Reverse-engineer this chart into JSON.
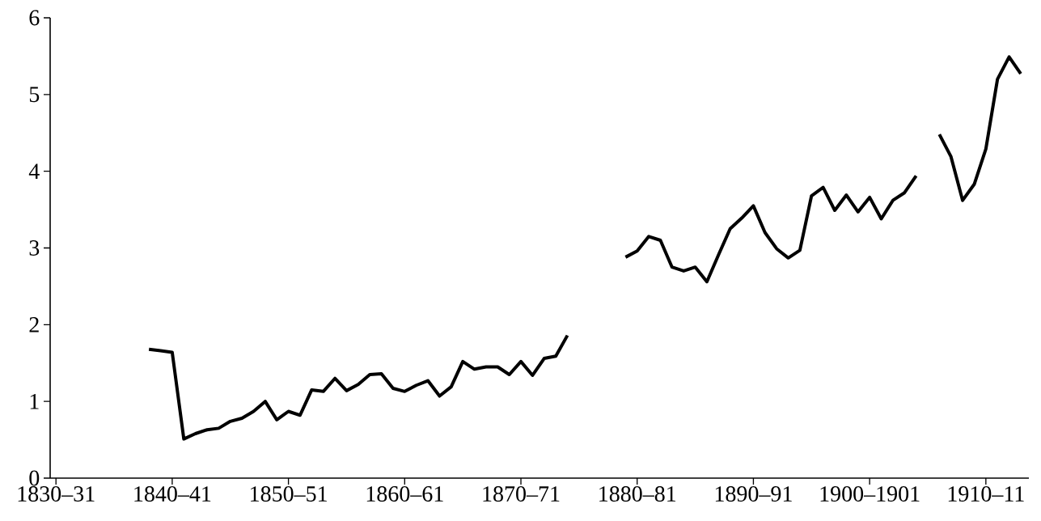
{
  "chart_data": {
    "type": "line",
    "color": "#000000",
    "categories": [
      "1830–31",
      null,
      null,
      null,
      null,
      null,
      null,
      null,
      null,
      null,
      "1840–41",
      null,
      null,
      null,
      null,
      null,
      null,
      null,
      null,
      null,
      "1850–51",
      null,
      null,
      null,
      null,
      null,
      null,
      null,
      null,
      null,
      "1860–61",
      null,
      null,
      null,
      null,
      null,
      null,
      null,
      null,
      null,
      "1870–71",
      null,
      null,
      null,
      null,
      null,
      null,
      null,
      null,
      null,
      "1880–81",
      null,
      null,
      null,
      null,
      null,
      null,
      null,
      null,
      null,
      "1890–91",
      null,
      null,
      null,
      null,
      null,
      null,
      null,
      null,
      null,
      "1900–1901",
      null,
      null,
      null,
      null,
      null,
      null,
      null,
      null,
      null,
      "1910–11",
      null,
      null,
      null
    ],
    "values": [
      null,
      null,
      null,
      null,
      null,
      null,
      null,
      null,
      1.68,
      1.66,
      1.64,
      0.51,
      0.58,
      0.63,
      0.65,
      0.74,
      0.78,
      0.87,
      1.0,
      0.76,
      0.87,
      0.82,
      1.15,
      1.13,
      1.3,
      1.14,
      1.22,
      1.35,
      1.36,
      1.17,
      1.13,
      1.21,
      1.27,
      1.07,
      1.19,
      1.52,
      1.42,
      1.45,
      1.45,
      1.35,
      1.52,
      1.34,
      1.56,
      1.59,
      1.86,
      null,
      null,
      null,
      null,
      2.88,
      2.96,
      3.15,
      3.1,
      2.75,
      2.7,
      2.75,
      2.56,
      2.91,
      3.25,
      3.39,
      3.55,
      3.2,
      2.99,
      2.87,
      2.97,
      3.68,
      3.79,
      3.49,
      3.69,
      3.47,
      3.66,
      3.38,
      3.62,
      3.72,
      3.94,
      null,
      4.48,
      4.19,
      3.62,
      3.83,
      4.29,
      5.2,
      5.49,
      5.27
    ],
    "ylim": [
      0,
      6
    ],
    "yticks": [
      0,
      1,
      2,
      3,
      4,
      5,
      6
    ]
  }
}
